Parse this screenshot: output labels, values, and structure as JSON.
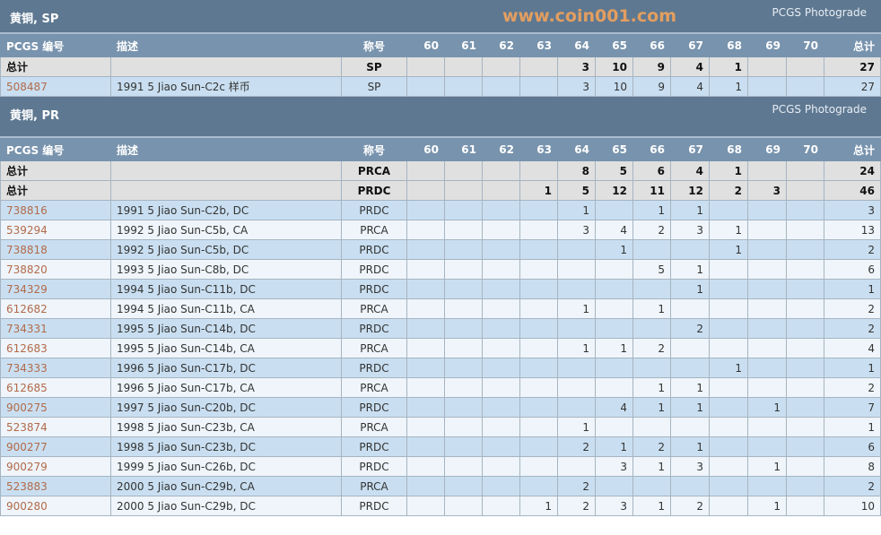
{
  "sections": [
    {
      "title": "黄铜, SP",
      "photograde": "PCGS Photograde",
      "headers": [
        "PCGS 编号",
        "描述",
        "称号",
        "60",
        "61",
        "62",
        "63",
        "64",
        "65",
        "66",
        "67",
        "68",
        "69",
        "70",
        "总计"
      ],
      "totals": [
        {
          "label": "总计",
          "designation": "SP",
          "grades": [
            "",
            "",
            "",
            "",
            "3",
            "10",
            "9",
            "4",
            "1",
            "",
            ""
          ],
          "total": "27"
        }
      ],
      "rows": [
        {
          "pcgs": "508487",
          "desc": "1991 5 Jiao Sun-C2c 样币",
          "designation": "SP",
          "grades": [
            "",
            "",
            "",
            "",
            "3",
            "10",
            "9",
            "4",
            "1",
            "",
            ""
          ],
          "total": "27"
        }
      ]
    },
    {
      "title": "黄铜, PR",
      "photograde": "PCGS Photograde",
      "headers": [
        "PCGS 编号",
        "描述",
        "称号",
        "60",
        "61",
        "62",
        "63",
        "64",
        "65",
        "66",
        "67",
        "68",
        "69",
        "70",
        "总计"
      ],
      "totals": [
        {
          "label": "总计",
          "designation": "PRCA",
          "grades": [
            "",
            "",
            "",
            "",
            "8",
            "5",
            "6",
            "4",
            "1",
            "",
            ""
          ],
          "total": "24"
        },
        {
          "label": "总计",
          "designation": "PRDC",
          "grades": [
            "",
            "",
            "",
            "1",
            "5",
            "12",
            "11",
            "12",
            "2",
            "3",
            ""
          ],
          "total": "46"
        }
      ],
      "rows": [
        {
          "pcgs": "738816",
          "desc": "1991 5 Jiao Sun-C2b, DC",
          "designation": "PRDC",
          "grades": [
            "",
            "",
            "",
            "",
            "1",
            "",
            "1",
            "1",
            "",
            "",
            ""
          ],
          "total": "3"
        },
        {
          "pcgs": "539294",
          "desc": "1992 5 Jiao Sun-C5b, CA",
          "designation": "PRCA",
          "grades": [
            "",
            "",
            "",
            "",
            "3",
            "4",
            "2",
            "3",
            "1",
            "",
            ""
          ],
          "total": "13"
        },
        {
          "pcgs": "738818",
          "desc": "1992 5 Jiao Sun-C5b, DC",
          "designation": "PRDC",
          "grades": [
            "",
            "",
            "",
            "",
            "",
            "1",
            "",
            "",
            "1",
            "",
            ""
          ],
          "total": "2"
        },
        {
          "pcgs": "738820",
          "desc": "1993 5 Jiao Sun-C8b, DC",
          "designation": "PRDC",
          "grades": [
            "",
            "",
            "",
            "",
            "",
            "",
            "5",
            "1",
            "",
            "",
            ""
          ],
          "total": "6"
        },
        {
          "pcgs": "734329",
          "desc": "1994 5 Jiao Sun-C11b, DC",
          "designation": "PRDC",
          "grades": [
            "",
            "",
            "",
            "",
            "",
            "",
            "",
            "1",
            "",
            "",
            ""
          ],
          "total": "1"
        },
        {
          "pcgs": "612682",
          "desc": "1994 5 Jiao Sun-C11b, CA",
          "designation": "PRCA",
          "grades": [
            "",
            "",
            "",
            "",
            "1",
            "",
            "1",
            "",
            "",
            "",
            ""
          ],
          "total": "2"
        },
        {
          "pcgs": "734331",
          "desc": "1995 5 Jiao Sun-C14b, DC",
          "designation": "PRDC",
          "grades": [
            "",
            "",
            "",
            "",
            "",
            "",
            "",
            "2",
            "",
            "",
            ""
          ],
          "total": "2"
        },
        {
          "pcgs": "612683",
          "desc": "1995 5 Jiao Sun-C14b, CA",
          "designation": "PRCA",
          "grades": [
            "",
            "",
            "",
            "",
            "1",
            "1",
            "2",
            "",
            "",
            "",
            ""
          ],
          "total": "4"
        },
        {
          "pcgs": "734333",
          "desc": "1996 5 Jiao Sun-C17b, DC",
          "designation": "PRDC",
          "grades": [
            "",
            "",
            "",
            "",
            "",
            "",
            "",
            "",
            "1",
            "",
            ""
          ],
          "total": "1"
        },
        {
          "pcgs": "612685",
          "desc": "1996 5 Jiao Sun-C17b, CA",
          "designation": "PRCA",
          "grades": [
            "",
            "",
            "",
            "",
            "",
            "",
            "1",
            "1",
            "",
            "",
            ""
          ],
          "total": "2"
        },
        {
          "pcgs": "900275",
          "desc": "1997 5 Jiao Sun-C20b, DC",
          "designation": "PRDC",
          "grades": [
            "",
            "",
            "",
            "",
            "",
            "4",
            "1",
            "1",
            "",
            "1",
            ""
          ],
          "total": "7"
        },
        {
          "pcgs": "523874",
          "desc": "1998 5 Jiao Sun-C23b, CA",
          "designation": "PRCA",
          "grades": [
            "",
            "",
            "",
            "",
            "1",
            "",
            "",
            "",
            "",
            "",
            ""
          ],
          "total": "1"
        },
        {
          "pcgs": "900277",
          "desc": "1998 5 Jiao Sun-C23b, DC",
          "designation": "PRDC",
          "grades": [
            "",
            "",
            "",
            "",
            "2",
            "1",
            "2",
            "1",
            "",
            "",
            ""
          ],
          "total": "6"
        },
        {
          "pcgs": "900279",
          "desc": "1999 5 Jiao Sun-C26b, DC",
          "designation": "PRDC",
          "grades": [
            "",
            "",
            "",
            "",
            "",
            "3",
            "1",
            "3",
            "",
            "1",
            ""
          ],
          "total": "8"
        },
        {
          "pcgs": "523883",
          "desc": "2000 5 Jiao Sun-C29b, CA",
          "designation": "PRCA",
          "grades": [
            "",
            "",
            "",
            "",
            "2",
            "",
            "",
            "",
            "",
            "",
            ""
          ],
          "total": "2"
        },
        {
          "pcgs": "900280",
          "desc": "2000 5 Jiao Sun-C29b, DC",
          "designation": "PRDC",
          "grades": [
            "",
            "",
            "",
            "1",
            "2",
            "3",
            "1",
            "2",
            "",
            "1",
            ""
          ],
          "total": "10"
        }
      ]
    }
  ],
  "watermark": "www.coin001.com",
  "colors": {
    "section_header": "#5e7891",
    "table_header": "#7893ad",
    "total_row": "#e0e0e0",
    "row_odd": "#c9dff1",
    "row_even": "#eff5fa",
    "link": "#b26a4a"
  }
}
